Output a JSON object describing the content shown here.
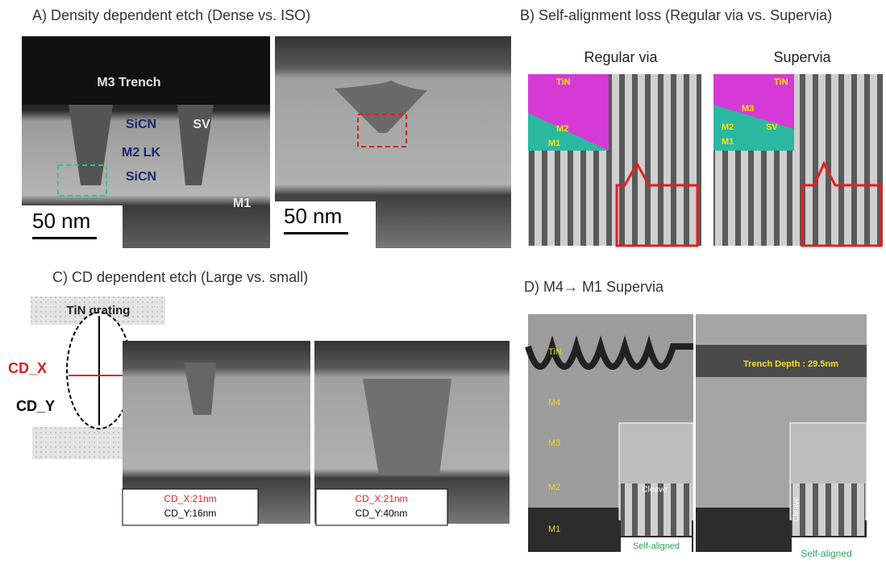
{
  "panels": [
    {
      "title": "A) Density dependent etch (Dense vs. ISO)",
      "labels": [
        "M3 Trench",
        "SiCN",
        "SV",
        "M2 LK",
        "SiCN",
        "M1"
      ],
      "scale_bars": [
        "50 nm",
        "50 nm"
      ]
    },
    {
      "title": "B) Self-alignment loss (Regular via vs. Supervia)",
      "subtitles": [
        "Regular via",
        "Supervia"
      ],
      "regular_inset": [
        "TiN",
        "M2",
        "M1"
      ],
      "supervia_inset": [
        "TiN",
        "M3",
        "M2",
        "SV",
        "M1"
      ]
    },
    {
      "title": "C) CD dependent etch (Large vs. small)",
      "diagram": {
        "grating": "TiN grating",
        "x_label": "CD_X",
        "y_label": "CD_Y"
      },
      "boxes": [
        {
          "cd_x": "CD_X:21nm",
          "cd_y": "CD_Y:16nm"
        },
        {
          "cd_x": "CD_X:21nm",
          "cd_y": "CD_Y:40nm"
        }
      ]
    },
    {
      "title": "D) M4→ M1 Supervia",
      "layers": [
        "TiN",
        "M4",
        "M3",
        "M2",
        "M1"
      ],
      "trench_depth": "Trench Depth : 29.5nm",
      "cleave": [
        "Cleave",
        "Cleave"
      ],
      "self_aligned": [
        "Self-aligned",
        "Self-aligned"
      ]
    }
  ]
}
